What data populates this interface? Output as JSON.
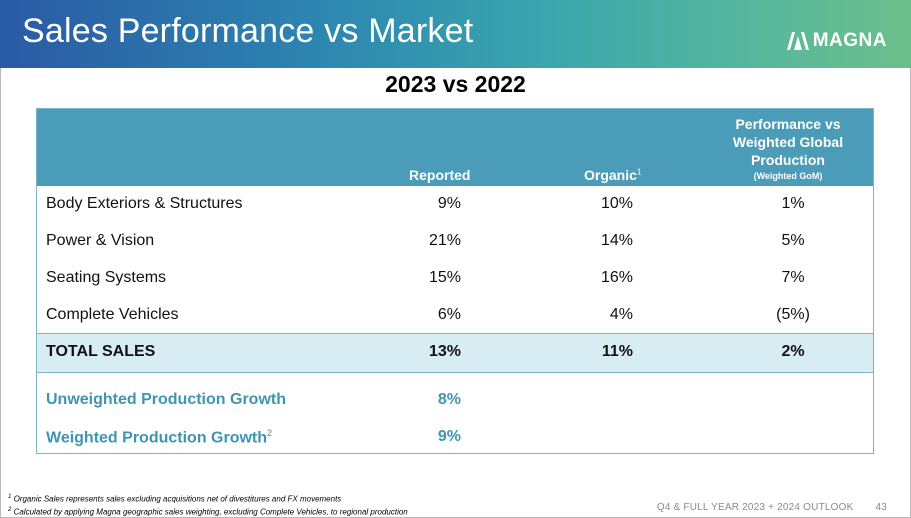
{
  "header": {
    "title": "Sales Performance vs Market",
    "logo_text": "MAGNA"
  },
  "subtitle": "2023 vs 2022",
  "table": {
    "columns": {
      "reported": "Reported",
      "organic": "Organic",
      "organic_sup": "1",
      "perf_line1": "Performance vs",
      "perf_line2": "Weighted Global",
      "perf_line3": "Production",
      "perf_sub": "(Weighted GoM)"
    },
    "rows": [
      {
        "label": "Body Exteriors & Structures",
        "reported": "9%",
        "organic": "10%",
        "performance": "1%"
      },
      {
        "label": "Power & Vision",
        "reported": "21%",
        "organic": "14%",
        "performance": "5%"
      },
      {
        "label": "Seating Systems",
        "reported": "15%",
        "organic": "16%",
        "performance": "7%"
      },
      {
        "label": "Complete Vehicles",
        "reported": "6%",
        "organic": "4%",
        "performance": "(5%)"
      }
    ],
    "total": {
      "label": "TOTAL SALES",
      "reported": "13%",
      "organic": "11%",
      "performance": "2%"
    },
    "production": [
      {
        "label": "Unweighted Production Growth",
        "sup": "",
        "reported": "8%"
      },
      {
        "label": "Weighted Production Growth",
        "sup": "2",
        "reported": "9%"
      }
    ]
  },
  "footnotes": {
    "n1_mark": "1",
    "n1": "Organic Sales represents sales excluding acquisitions net of divestitures and FX movements",
    "n2_mark": "2",
    "n2": "Calculated by applying Magna geographic sales weighting, excluding Complete Vehicles, to regional production"
  },
  "footer": {
    "label": "Q4 & FULL YEAR 2023 + 2024 OUTLOOK",
    "page": "43"
  }
}
